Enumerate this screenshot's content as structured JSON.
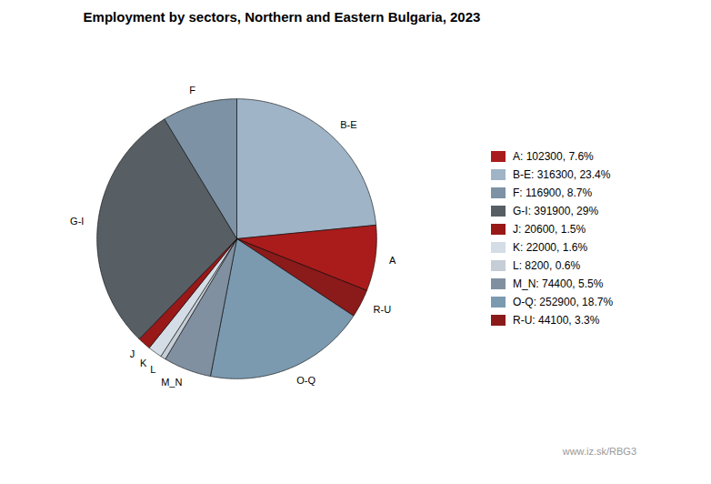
{
  "chart_data": {
    "type": "pie",
    "title": "Employment by sectors, Northern and Eastern Bulgaria, 2023",
    "categories": [
      "B-E",
      "A",
      "R-U",
      "O-Q",
      "M_N",
      "L",
      "K",
      "J",
      "G-I",
      "F"
    ],
    "values": [
      316300,
      102300,
      44100,
      252900,
      74400,
      8200,
      22000,
      20600,
      391900,
      116900
    ],
    "colors": [
      "#9fb4c7",
      "#aa1c1c",
      "#8b1a1a",
      "#7b9ab0",
      "#8090a0",
      "#c5cdd6",
      "#d4dde6",
      "#991818",
      "#575f65",
      "#7d92a5"
    ],
    "legend": "right",
    "legend_entries": [
      {
        "label": "A: 102300, 7.6%",
        "color": "#aa1c1c"
      },
      {
        "label": "B-E: 316300, 23.4%",
        "color": "#9fb4c7"
      },
      {
        "label": "F: 116900, 8.7%",
        "color": "#7d92a5"
      },
      {
        "label": "G-I: 391900, 29%",
        "color": "#575f65"
      },
      {
        "label": "J: 20600, 1.5%",
        "color": "#991818"
      },
      {
        "label": "K: 22000, 1.6%",
        "color": "#d4dde6"
      },
      {
        "label": "L: 8200, 0.6%",
        "color": "#c5cdd6"
      },
      {
        "label": "M_N: 74400, 5.5%",
        "color": "#8090a0"
      },
      {
        "label": "O-Q: 252900, 18.7%",
        "color": "#7b9ab0"
      },
      {
        "label": "R-U: 44100, 3.3%",
        "color": "#8b1a1a"
      }
    ],
    "annotations": [
      "www.iz.sk/RBG3"
    ]
  }
}
